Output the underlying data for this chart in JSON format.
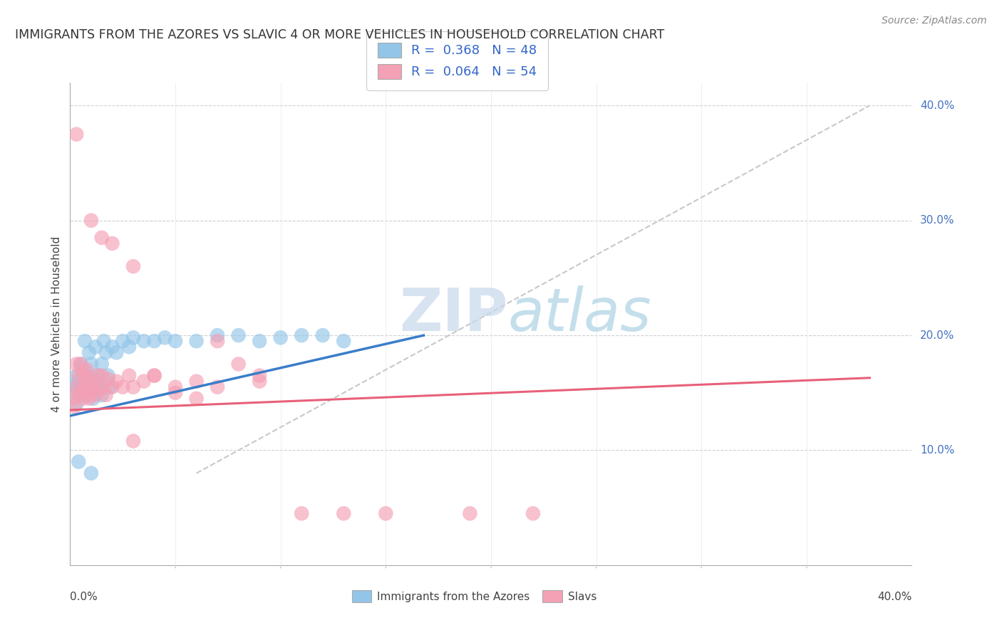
{
  "title": "IMMIGRANTS FROM THE AZORES VS SLAVIC 4 OR MORE VEHICLES IN HOUSEHOLD CORRELATION CHART",
  "source": "Source: ZipAtlas.com",
  "ylabel": "4 or more Vehicles in Household",
  "xlim": [
    0.0,
    0.4
  ],
  "ylim": [
    0.0,
    0.42
  ],
  "color_blue": "#92C5E8",
  "color_pink": "#F4A0B5",
  "color_blue_line": "#3A7DC9",
  "color_pink_line": "#E8607A",
  "color_gray_dash": "#C8C8C8",
  "watermark_zip": "ZIP",
  "watermark_atlas": "atlas",
  "azores_x": [
    0.001,
    0.002,
    0.003,
    0.003,
    0.004,
    0.005,
    0.005,
    0.006,
    0.006,
    0.007,
    0.007,
    0.008,
    0.008,
    0.009,
    0.009,
    0.01,
    0.01,
    0.011,
    0.011,
    0.012,
    0.012,
    0.013,
    0.014,
    0.015,
    0.015,
    0.016,
    0.017,
    0.018,
    0.019,
    0.02,
    0.022,
    0.025,
    0.028,
    0.03,
    0.035,
    0.04,
    0.045,
    0.05,
    0.06,
    0.07,
    0.08,
    0.09,
    0.1,
    0.11,
    0.12,
    0.13,
    0.004,
    0.01
  ],
  "azores_y": [
    0.155,
    0.15,
    0.165,
    0.14,
    0.16,
    0.155,
    0.175,
    0.148,
    0.17,
    0.152,
    0.195,
    0.158,
    0.165,
    0.16,
    0.185,
    0.155,
    0.175,
    0.162,
    0.145,
    0.158,
    0.19,
    0.165,
    0.155,
    0.175,
    0.148,
    0.195,
    0.185,
    0.165,
    0.155,
    0.19,
    0.185,
    0.195,
    0.19,
    0.198,
    0.195,
    0.195,
    0.198,
    0.195,
    0.195,
    0.2,
    0.2,
    0.195,
    0.198,
    0.2,
    0.2,
    0.195,
    0.09,
    0.08
  ],
  "slavic_x": [
    0.001,
    0.002,
    0.003,
    0.003,
    0.004,
    0.004,
    0.005,
    0.005,
    0.006,
    0.006,
    0.007,
    0.007,
    0.008,
    0.008,
    0.009,
    0.009,
    0.01,
    0.01,
    0.011,
    0.012,
    0.013,
    0.014,
    0.015,
    0.016,
    0.017,
    0.018,
    0.02,
    0.022,
    0.025,
    0.028,
    0.03,
    0.035,
    0.04,
    0.05,
    0.06,
    0.07,
    0.08,
    0.09,
    0.003,
    0.01,
    0.015,
    0.02,
    0.03,
    0.04,
    0.05,
    0.06,
    0.07,
    0.09,
    0.11,
    0.13,
    0.15,
    0.19,
    0.22,
    0.03
  ],
  "slavic_y": [
    0.145,
    0.138,
    0.155,
    0.175,
    0.148,
    0.165,
    0.152,
    0.175,
    0.145,
    0.168,
    0.155,
    0.165,
    0.148,
    0.17,
    0.158,
    0.145,
    0.16,
    0.152,
    0.155,
    0.148,
    0.165,
    0.152,
    0.165,
    0.155,
    0.148,
    0.162,
    0.155,
    0.16,
    0.155,
    0.165,
    0.155,
    0.16,
    0.165,
    0.155,
    0.16,
    0.155,
    0.175,
    0.165,
    0.375,
    0.3,
    0.285,
    0.28,
    0.26,
    0.165,
    0.15,
    0.145,
    0.195,
    0.16,
    0.045,
    0.045,
    0.045,
    0.045,
    0.045,
    0.108
  ],
  "blue_line_x0": 0.0,
  "blue_line_y0": 0.13,
  "blue_line_x1": 0.168,
  "blue_line_y1": 0.2,
  "pink_line_x0": 0.0,
  "pink_line_y0": 0.135,
  "pink_line_x1": 0.38,
  "pink_line_y1": 0.163,
  "gray_line_x0": 0.06,
  "gray_line_y0": 0.08,
  "gray_line_x1": 0.38,
  "gray_line_y1": 0.4
}
